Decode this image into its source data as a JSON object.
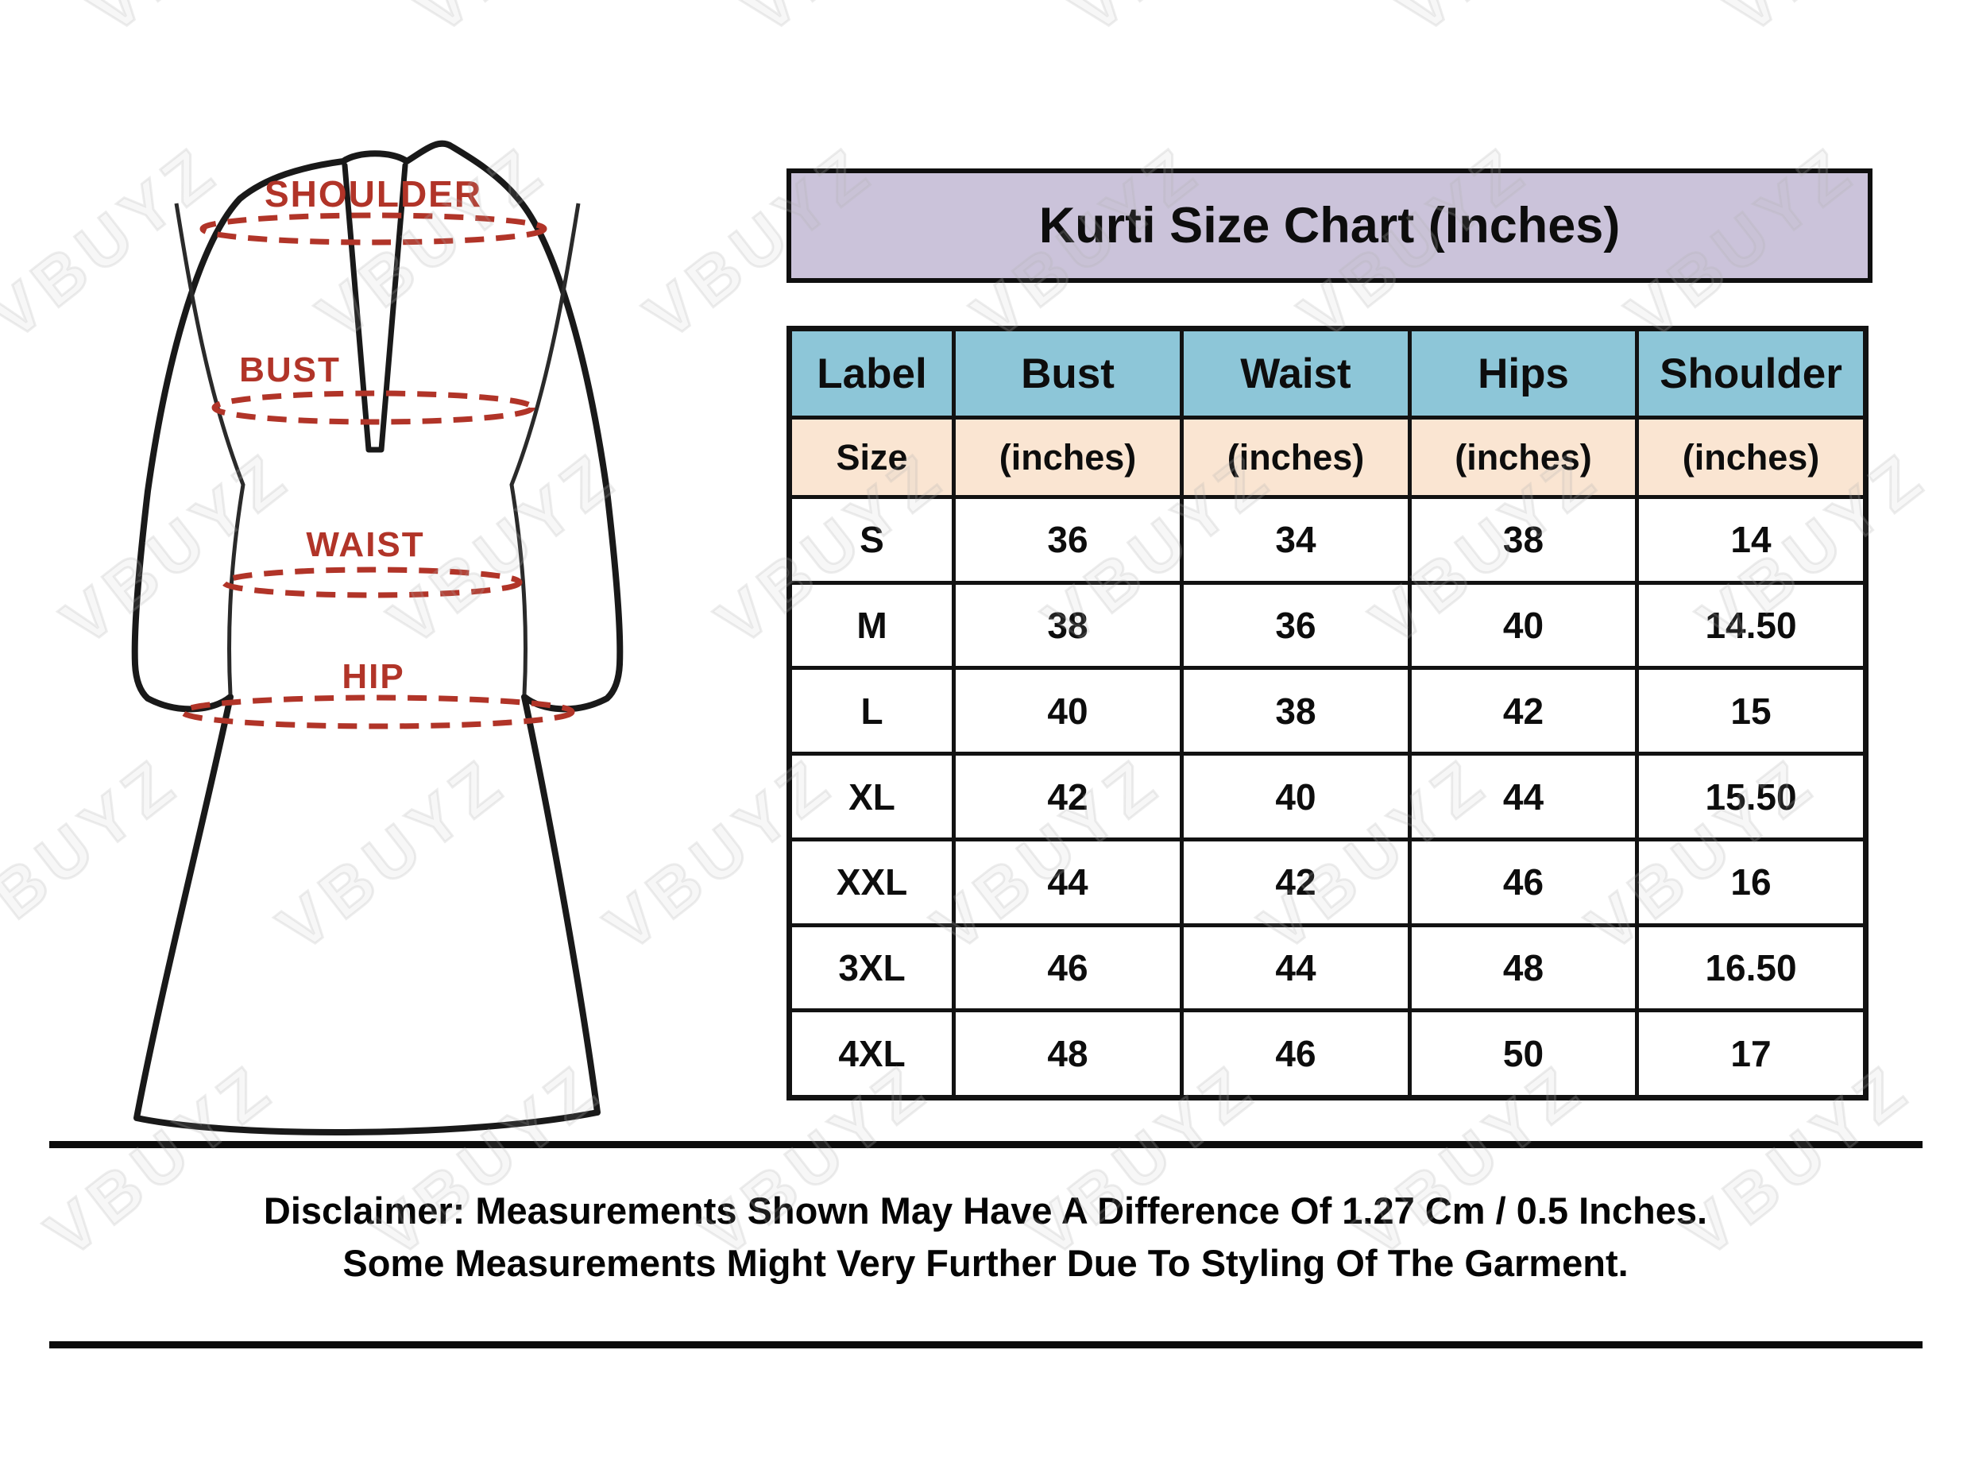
{
  "watermark": {
    "text": "VBUYZ"
  },
  "title_banner": "Kurti Size Chart (Inches)",
  "garment_diagram": {
    "labels": {
      "shoulder": "SHOULDER",
      "bust": "BUST",
      "waist": "WAIST",
      "hip": "HIP"
    }
  },
  "size_table": {
    "header": [
      "Label",
      "Bust",
      "Waist",
      "Hips",
      "Shoulder"
    ],
    "subheader": [
      "Size",
      "(inches)",
      "(inches)",
      "(inches)",
      "(inches)"
    ],
    "rows": [
      [
        "S",
        "36",
        "34",
        "38",
        "14"
      ],
      [
        "M",
        "38",
        "36",
        "40",
        "14.50"
      ],
      [
        "L",
        "40",
        "38",
        "42",
        "15"
      ],
      [
        "XL",
        "42",
        "40",
        "44",
        "15.50"
      ],
      [
        "XXL",
        "44",
        "42",
        "46",
        "16"
      ],
      [
        "3XL",
        "46",
        "44",
        "48",
        "16.50"
      ],
      [
        "4XL",
        "48",
        "46",
        "50",
        "17"
      ]
    ]
  },
  "disclaimer": {
    "line1": "Disclaimer: Measurements Shown May Have A Difference Of 1.27 Cm / 0.5 Inches.",
    "line2": "Some Measurements Might Very Further Due To Styling Of The Garment."
  },
  "colors": {
    "title_bg": "#cbc3da",
    "header_bg": "#8dc6d8",
    "subheader_bg": "#fae5d2",
    "accent_red": "#b13428",
    "border_black": "#121212",
    "watermark_gray": "#cfcfcf"
  },
  "chart_data": {
    "type": "table",
    "title": "Kurti Size Chart (Inches)",
    "columns": [
      "Label Size",
      "Bust (inches)",
      "Waist (inches)",
      "Hips (inches)",
      "Shoulder (inches)"
    ],
    "rows": [
      [
        "S",
        36,
        34,
        38,
        14
      ],
      [
        "M",
        38,
        36,
        40,
        14.5
      ],
      [
        "L",
        40,
        38,
        42,
        15
      ],
      [
        "XL",
        42,
        40,
        44,
        15.5
      ],
      [
        "XXL",
        44,
        42,
        46,
        16
      ],
      [
        "3XL",
        46,
        44,
        48,
        16.5
      ],
      [
        "4XL",
        48,
        46,
        50,
        17
      ]
    ]
  }
}
